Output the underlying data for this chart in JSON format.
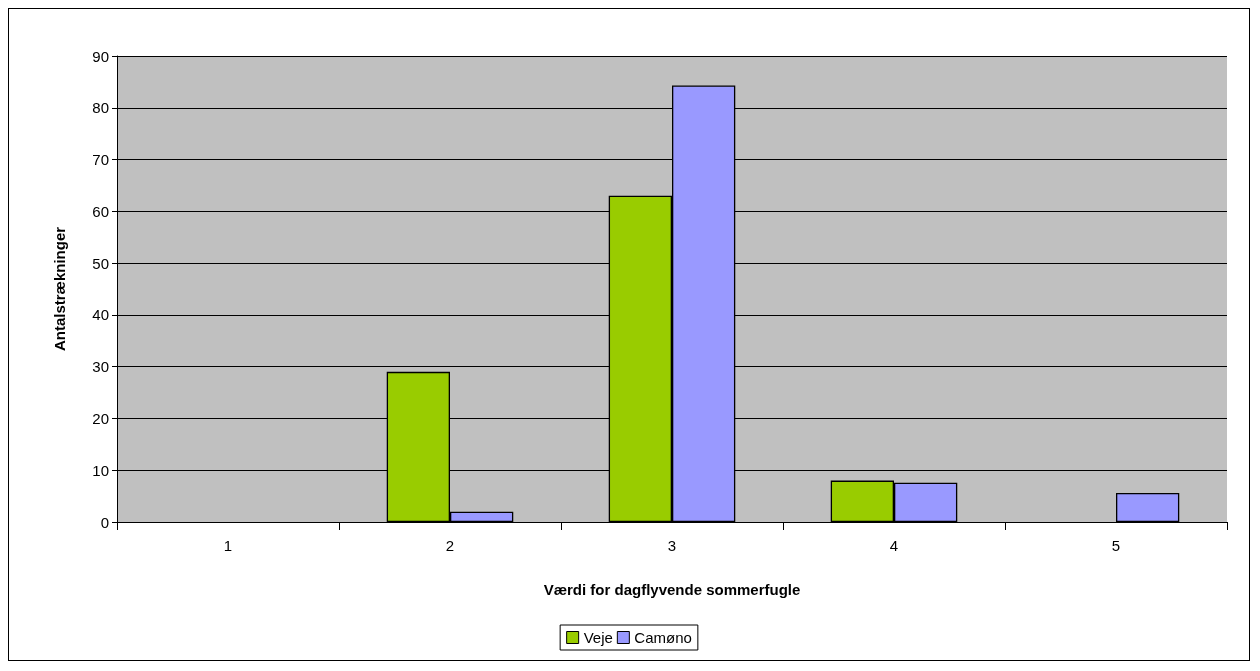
{
  "chart_data": {
    "type": "bar",
    "xlabel": "Værdi for dagflyvende sommerfugle",
    "ylabel": "Antalstrækninger",
    "categories": [
      "1",
      "2",
      "3",
      "4",
      "5"
    ],
    "series": [
      {
        "name": "Veje",
        "color": "#99cc00",
        "values": [
          0,
          29,
          63,
          8,
          0
        ]
      },
      {
        "name": "Camøno",
        "color": "#9999ff",
        "values": [
          0,
          2,
          84.3,
          7.6,
          5.6
        ]
      }
    ],
    "ylim": [
      0,
      90
    ],
    "yticks": [
      0,
      10,
      20,
      30,
      40,
      50,
      60,
      70,
      80,
      90
    ],
    "grid": "y",
    "legend": "bottom"
  }
}
